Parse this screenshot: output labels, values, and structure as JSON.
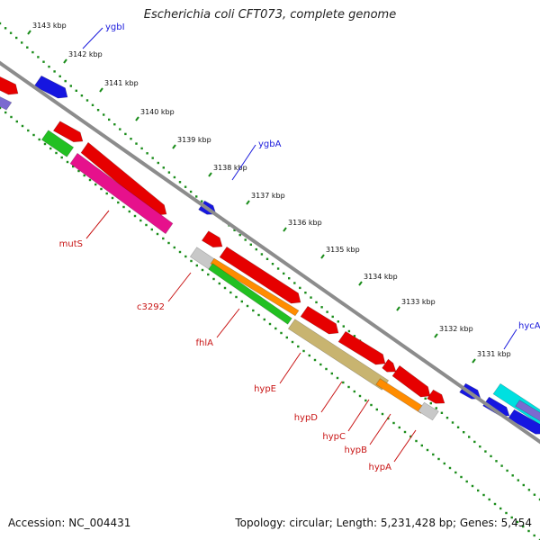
{
  "title": "Escherichia coli CFT073, complete genome",
  "footer": {
    "accession": "Accession: NC_004431",
    "topology": "Topology: circular; Length: 5,231,428 bp; Genes: 5,454"
  },
  "colors": {
    "backbone": "#8c8c8c",
    "dots": "#1a8c1a",
    "forward_label": "#1a1adc",
    "reverse_label": "#c81414",
    "red": "#e60000",
    "blue": "#1616e0",
    "green": "#22c022",
    "magenta": "#e6118c",
    "orange": "#ff8c00",
    "tan": "#c8b470",
    "grey": "#c8c8c8",
    "cyan": "#00e0e0",
    "violet": "#7b6ad0"
  },
  "ticks": [
    "3143 kbp",
    "3142 kbp",
    "3141 kbp",
    "3140 kbp",
    "3139 kbp",
    "3138 kbp",
    "3137 kbp",
    "3136 kbp",
    "3135 kbp",
    "3134 kbp",
    "3133 kbp",
    "3132 kbp",
    "3131 kbp"
  ],
  "forward_genes": [
    "ygbI",
    "ygbA",
    "hycA"
  ],
  "reverse_genes": [
    "mutS",
    "c3292",
    "fhlA",
    "hypE",
    "hypD",
    "hypC",
    "hypB",
    "hypA"
  ]
}
